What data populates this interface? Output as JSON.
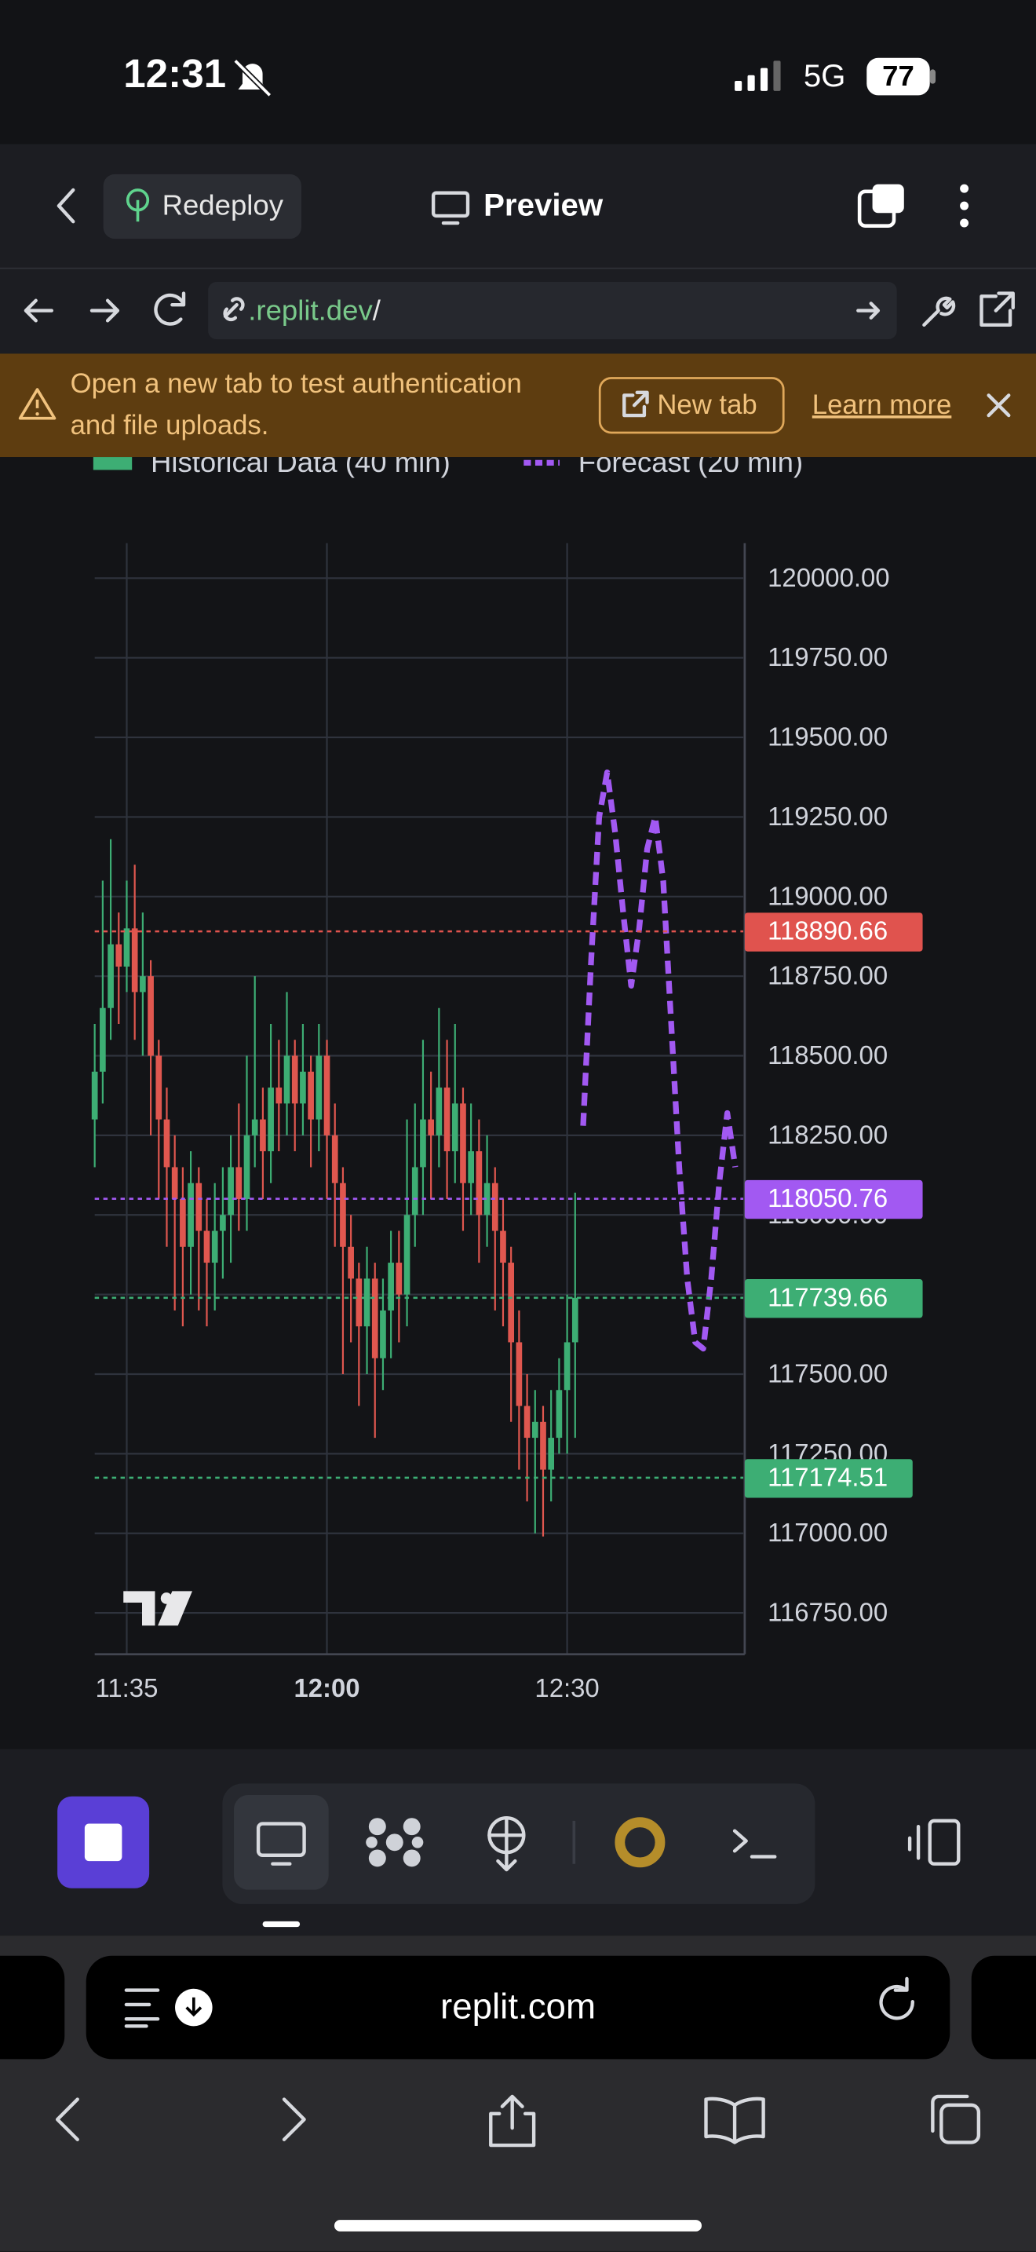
{
  "status_bar": {
    "time": "12:31",
    "network": "5G",
    "battery": "77"
  },
  "header": {
    "redeploy": "Redeploy",
    "preview": "Preview"
  },
  "url_bar": {
    "host": ".replit.dev",
    "path": "/"
  },
  "banner": {
    "message_line1": "Open a new tab to test authentication",
    "message_line2": "and file uploads.",
    "new_tab": "New tab",
    "learn_more": "Learn more"
  },
  "chart_data": {
    "type": "candlestick",
    "up_color": "#3dae74",
    "down_color": "#e0574f",
    "historical": {
      "name": "Historical Data (40 min)",
      "color": "#3dae74"
    },
    "x": [
      "11:31",
      "11:32",
      "11:33",
      "11:34",
      "11:35",
      "11:36",
      "11:37",
      "11:38",
      "11:39",
      "11:40",
      "11:41",
      "11:42",
      "11:43",
      "11:44",
      "11:45",
      "11:46",
      "11:47",
      "11:48",
      "11:49",
      "11:50",
      "11:51",
      "11:52",
      "11:53",
      "11:54",
      "11:55",
      "11:56",
      "11:57",
      "11:58",
      "11:59",
      "12:00",
      "12:01",
      "12:02",
      "12:03",
      "12:04",
      "12:05",
      "12:06",
      "12:07",
      "12:08",
      "12:09",
      "12:10",
      "12:11",
      "12:12",
      "12:13",
      "12:14",
      "12:15",
      "12:16",
      "12:17",
      "12:18",
      "12:19",
      "12:20",
      "12:21",
      "12:22",
      "12:23",
      "12:24",
      "12:25",
      "12:26",
      "12:27",
      "12:28",
      "12:29",
      "12:30",
      "12:31"
    ],
    "open": [
      118300,
      118450,
      118650,
      118850,
      118780,
      118900,
      118700,
      118750,
      118500,
      118300,
      118150,
      118050,
      117900,
      118100,
      117950,
      117850,
      117950,
      118000,
      118150,
      118050,
      118250,
      118300,
      118200,
      118400,
      118350,
      118500,
      118350,
      118450,
      118300,
      118500,
      118250,
      118100,
      117900,
      117800,
      117650,
      117800,
      117550,
      117700,
      117850,
      117750,
      118000,
      118150,
      118300,
      118250,
      118400,
      118200,
      118350,
      118100,
      118200,
      118000,
      118100,
      117950,
      117850,
      117600,
      117400,
      117300,
      117350,
      117200,
      117300,
      117450,
      117600
    ],
    "high": [
      118600,
      119050,
      119180,
      118950,
      119050,
      119100,
      118950,
      118800,
      118550,
      118400,
      118250,
      118150,
      118200,
      118150,
      118050,
      118100,
      118150,
      118250,
      118350,
      118500,
      118750,
      118400,
      118600,
      118550,
      118700,
      118550,
      118600,
      118500,
      118600,
      118550,
      118350,
      118150,
      118000,
      117850,
      117900,
      117850,
      117800,
      117950,
      117950,
      118300,
      118350,
      118550,
      118450,
      118650,
      118550,
      118600,
      118400,
      118350,
      118300,
      118250,
      118150,
      118050,
      117900,
      117700,
      117500,
      117450,
      117400,
      117450,
      117550,
      117750,
      118070
    ],
    "low": [
      118150,
      118350,
      118550,
      118600,
      118700,
      118550,
      118500,
      118250,
      118050,
      117900,
      117700,
      117650,
      117750,
      117700,
      117650,
      117700,
      117800,
      117850,
      117950,
      117950,
      118150,
      118050,
      118100,
      118200,
      118250,
      118200,
      118250,
      118150,
      118200,
      118050,
      117900,
      117500,
      117600,
      117400,
      117500,
      117300,
      117450,
      117550,
      117600,
      117650,
      117900,
      118000,
      118050,
      118150,
      118050,
      118100,
      117950,
      118000,
      117850,
      117900,
      117700,
      117650,
      117350,
      117200,
      117100,
      117000,
      116990,
      117100,
      117250,
      117250,
      117300
    ],
    "close": [
      118450,
      118650,
      118850,
      118780,
      118900,
      118700,
      118750,
      118500,
      118300,
      118150,
      118050,
      117900,
      118100,
      117950,
      117850,
      117950,
      118000,
      118150,
      118050,
      118250,
      118300,
      118200,
      118400,
      118350,
      118500,
      118350,
      118450,
      118300,
      118500,
      118250,
      118100,
      117900,
      117800,
      117650,
      117800,
      117550,
      117700,
      117850,
      117750,
      118000,
      118150,
      118300,
      118250,
      118400,
      118200,
      118350,
      118100,
      118200,
      118000,
      118100,
      117950,
      117850,
      117600,
      117400,
      117300,
      117350,
      117200,
      117300,
      117450,
      117600,
      117739.66
    ],
    "forecast": {
      "name": "Forecast (20 min)",
      "color": "#a259f2",
      "x": [
        "12:32",
        "12:33",
        "12:34",
        "12:35",
        "12:36",
        "12:37",
        "12:38",
        "12:39",
        "12:40",
        "12:41",
        "12:42",
        "12:43",
        "12:44",
        "12:45",
        "12:46",
        "12:47",
        "12:48",
        "12:49",
        "12:50",
        "12:51"
      ],
      "values": [
        118280,
        118800,
        119250,
        119390,
        119200,
        118950,
        118720,
        118900,
        119150,
        119250,
        119050,
        118600,
        118150,
        117800,
        117600,
        117580,
        117800,
        118100,
        118320,
        118150
      ]
    },
    "price_lines": [
      {
        "value": 118890.66,
        "color": "#e0534e"
      },
      {
        "value": 118050.76,
        "color": "#a259f2"
      },
      {
        "value": 117739.66,
        "color": "#3dae74"
      },
      {
        "value": 117174.51,
        "color": "#3dae74"
      }
    ],
    "xlim": [
      "11:31",
      "12:52"
    ],
    "xticks": [
      "11:35",
      "12:00",
      "12:30"
    ],
    "ylim": [
      116620,
      120110
    ],
    "yticks": [
      {
        "value": 116750,
        "label": "116750.00"
      },
      {
        "value": 117000,
        "label": "117000.00"
      },
      {
        "value": 117250,
        "label": "117250.00"
      },
      {
        "value": 117500,
        "label": "117500.00"
      },
      {
        "value": 117750,
        "label": "117750.00"
      },
      {
        "value": 118000,
        "label": "118000.00"
      },
      {
        "value": 118250,
        "label": "118250.00"
      },
      {
        "value": 118500,
        "label": "118500.00"
      },
      {
        "value": 118750,
        "label": "118750.00"
      },
      {
        "value": 119000,
        "label": "119000.00"
      },
      {
        "value": 119250,
        "label": "119250.00"
      },
      {
        "value": 119500,
        "label": "119500.00"
      },
      {
        "value": 119750,
        "label": "119750.00"
      },
      {
        "value": 120000,
        "label": "120000.00"
      }
    ],
    "grid": true
  },
  "browser": {
    "address": "replit.com"
  }
}
